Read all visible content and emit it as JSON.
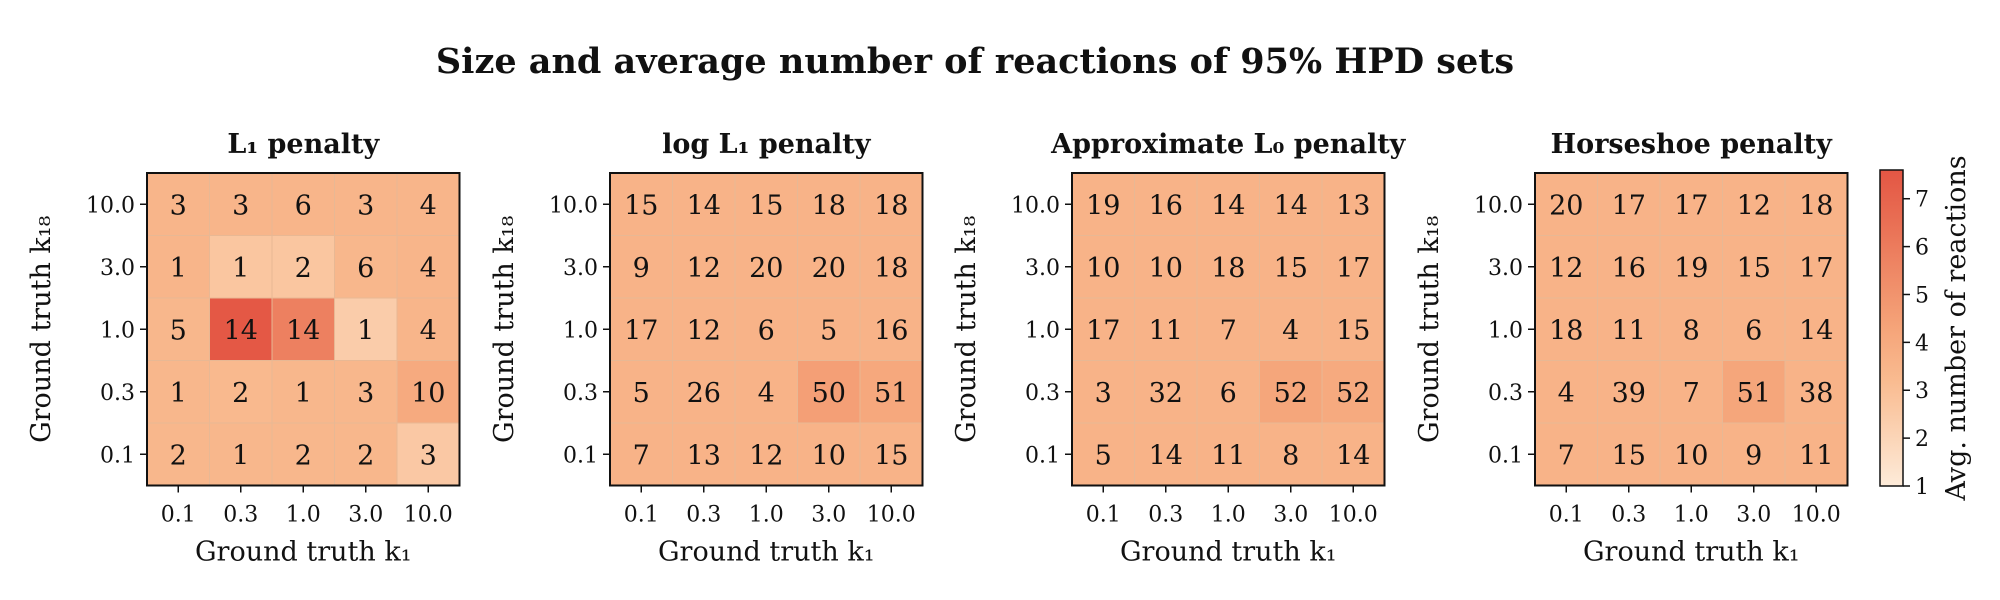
{
  "figure": {
    "title": "Size and average number of reactions of 95% HPD sets"
  },
  "colorbar": {
    "label": "Avg. number of reactions",
    "ticks": [
      "1",
      "2",
      "3",
      "4",
      "5",
      "6",
      "7"
    ],
    "range": [
      1,
      7.6
    ],
    "colors": [
      "#fdebd9",
      "#fbd3b4",
      "#f9bb90",
      "#f5a479",
      "#ef8a67",
      "#e96f54",
      "#e35644"
    ]
  },
  "chart_data": [
    {
      "type": "heatmap",
      "title": "L₁ penalty",
      "xlabel": "Ground truth k₁",
      "ylabel": "Ground truth k₁₈",
      "x_ticks": [
        "0.1",
        "0.3",
        "1.0",
        "3.0",
        "10.0"
      ],
      "y_ticks": [
        "10.0",
        "3.0",
        "1.0",
        "0.3",
        "0.1"
      ],
      "cell_labels": [
        [
          3,
          3,
          6,
          3,
          4
        ],
        [
          1,
          1,
          2,
          6,
          4
        ],
        [
          5,
          14,
          14,
          1,
          4
        ],
        [
          1,
          2,
          1,
          3,
          10
        ],
        [
          2,
          1,
          2,
          2,
          3
        ]
      ],
      "color_values": [
        [
          3.5,
          3.5,
          3.5,
          3.5,
          3.5
        ],
        [
          3.5,
          2.7,
          2.7,
          3.4,
          3.5
        ],
        [
          3.4,
          7.5,
          5.8,
          2.4,
          3.5
        ],
        [
          3.4,
          3.3,
          3.4,
          3.4,
          4.0
        ],
        [
          3.4,
          3.4,
          3.4,
          3.4,
          2.6
        ]
      ]
    },
    {
      "type": "heatmap",
      "title": "log L₁ penalty",
      "xlabel": "Ground truth k₁",
      "ylabel": "Ground truth k₁₈",
      "x_ticks": [
        "0.1",
        "0.3",
        "1.0",
        "3.0",
        "10.0"
      ],
      "y_ticks": [
        "10.0",
        "3.0",
        "1.0",
        "0.3",
        "0.1"
      ],
      "cell_labels": [
        [
          15,
          14,
          15,
          18,
          18
        ],
        [
          9,
          12,
          20,
          20,
          18
        ],
        [
          17,
          12,
          6,
          5,
          16
        ],
        [
          5,
          26,
          4,
          50,
          51
        ],
        [
          7,
          13,
          12,
          10,
          15
        ]
      ],
      "color_values": [
        [
          3.6,
          3.6,
          3.6,
          3.6,
          3.6
        ],
        [
          3.6,
          3.6,
          3.6,
          3.6,
          3.6
        ],
        [
          3.6,
          3.6,
          3.6,
          3.6,
          3.6
        ],
        [
          3.6,
          3.6,
          3.6,
          4.5,
          4.1
        ],
        [
          3.6,
          3.6,
          3.6,
          3.6,
          3.6
        ]
      ]
    },
    {
      "type": "heatmap",
      "title": "Approximate L₀ penalty",
      "xlabel": "Ground truth k₁",
      "ylabel": "Ground truth k₁₈",
      "x_ticks": [
        "0.1",
        "0.3",
        "1.0",
        "3.0",
        "10.0"
      ],
      "y_ticks": [
        "10.0",
        "3.0",
        "1.0",
        "0.3",
        "0.1"
      ],
      "cell_labels": [
        [
          19,
          16,
          14,
          14,
          13
        ],
        [
          10,
          10,
          18,
          15,
          17
        ],
        [
          17,
          11,
          7,
          4,
          15
        ],
        [
          3,
          32,
          6,
          52,
          52
        ],
        [
          5,
          14,
          11,
          8,
          14
        ]
      ],
      "color_values": [
        [
          3.6,
          3.6,
          3.6,
          3.6,
          3.6
        ],
        [
          3.6,
          3.6,
          3.6,
          3.6,
          3.6
        ],
        [
          3.6,
          3.6,
          3.6,
          3.6,
          3.6
        ],
        [
          3.6,
          3.6,
          3.6,
          4.2,
          4.0
        ],
        [
          3.6,
          3.6,
          3.6,
          3.6,
          3.6
        ]
      ]
    },
    {
      "type": "heatmap",
      "title": "Horseshoe penalty",
      "xlabel": "Ground truth k₁",
      "ylabel": "Ground truth k₁₈",
      "x_ticks": [
        "0.1",
        "0.3",
        "1.0",
        "3.0",
        "10.0"
      ],
      "y_ticks": [
        "10.0",
        "3.0",
        "1.0",
        "0.3",
        "0.1"
      ],
      "cell_labels": [
        [
          20,
          17,
          17,
          12,
          18
        ],
        [
          12,
          16,
          19,
          15,
          17
        ],
        [
          18,
          11,
          8,
          6,
          14
        ],
        [
          4,
          39,
          7,
          51,
          38
        ],
        [
          7,
          15,
          10,
          9,
          11
        ]
      ],
      "color_values": [
        [
          3.6,
          3.6,
          3.6,
          3.6,
          3.6
        ],
        [
          3.6,
          3.6,
          3.6,
          3.6,
          3.6
        ],
        [
          3.6,
          3.6,
          3.6,
          3.6,
          3.6
        ],
        [
          3.6,
          3.6,
          3.6,
          4.2,
          3.6
        ],
        [
          3.6,
          3.6,
          3.6,
          3.6,
          3.6
        ]
      ]
    }
  ]
}
